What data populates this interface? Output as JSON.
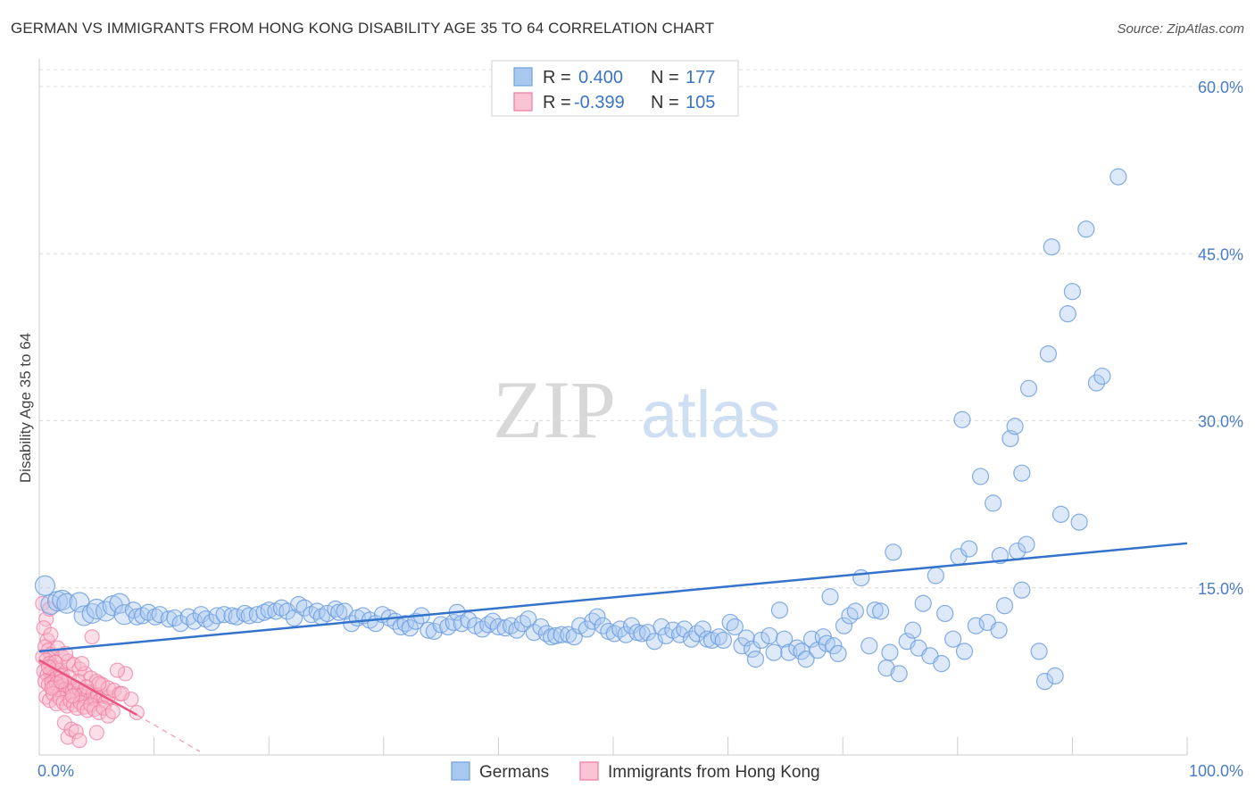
{
  "title": "GERMAN VS IMMIGRANTS FROM HONG KONG DISABILITY AGE 35 TO 64 CORRELATION CHART",
  "source": "Source: ZipAtlas.com",
  "watermark": {
    "zip": "ZIP",
    "atlas": "atlas"
  },
  "colors": {
    "blue": "#6f9fe0",
    "blue_fill": "#a9c8f0",
    "blue_line": "#3373cc",
    "pink": "#f07aa0",
    "pink_fill": "#f8b8cc",
    "pink_line": "#e8557f",
    "grid": "#dcdcdc",
    "tick_text": "#4a7cc7"
  },
  "legend": {
    "rows": [
      {
        "r_label": "R =",
        "r_value": "0.400",
        "n_label": "N =",
        "n_value": "177"
      },
      {
        "r_label": "R =",
        "r_value": "-0.399",
        "n_label": "N =",
        "n_value": "105"
      }
    ]
  },
  "chart_data": {
    "type": "scatter",
    "ylabel": "Disability Age 35 to 64",
    "xlim": [
      0,
      100
    ],
    "ylim": [
      0,
      60
    ],
    "y_ticks": [
      {
        "value": 15,
        "label": "15.0%"
      },
      {
        "value": 30,
        "label": "30.0%"
      },
      {
        "value": 45,
        "label": "45.0%"
      },
      {
        "value": 60,
        "label": "60.0%"
      }
    ],
    "x_tick_labels": [
      {
        "value": 0,
        "label": "0.0%"
      },
      {
        "value": 100,
        "label": "100.0%"
      }
    ],
    "grid": true,
    "series": [
      {
        "name": "Germans",
        "color": "#6f9fe0",
        "trend": {
          "x": [
            0,
            100
          ],
          "y": [
            9.3,
            19.0
          ]
        },
        "points": [
          [
            0.5,
            15.2
          ],
          [
            1.0,
            13.5
          ],
          [
            1.6,
            13.8
          ],
          [
            2.0,
            13.9
          ],
          [
            2.4,
            13.6
          ],
          [
            3.5,
            13.7
          ],
          [
            3.9,
            12.5
          ],
          [
            4.6,
            12.7
          ],
          [
            5.0,
            13.1
          ],
          [
            5.8,
            12.9
          ],
          [
            6.4,
            13.4
          ],
          [
            7.0,
            13.6
          ],
          [
            7.4,
            12.6
          ],
          [
            8.2,
            13.0
          ],
          [
            8.5,
            12.4
          ],
          [
            9.0,
            12.5
          ],
          [
            9.5,
            12.8
          ],
          [
            10.1,
            12.4
          ],
          [
            10.5,
            12.6
          ],
          [
            11.3,
            12.2
          ],
          [
            11.8,
            12.3
          ],
          [
            12.3,
            11.8
          ],
          [
            13.0,
            12.4
          ],
          [
            13.5,
            12.0
          ],
          [
            14.1,
            12.6
          ],
          [
            14.5,
            12.2
          ],
          [
            15.0,
            11.9
          ],
          [
            15.5,
            12.5
          ],
          [
            16.1,
            12.6
          ],
          [
            16.8,
            12.5
          ],
          [
            17.2,
            12.4
          ],
          [
            17.9,
            12.7
          ],
          [
            18.3,
            12.5
          ],
          [
            19.0,
            12.6
          ],
          [
            19.6,
            12.8
          ],
          [
            20.0,
            13.0
          ],
          [
            20.6,
            12.9
          ],
          [
            21.1,
            13.2
          ],
          [
            21.6,
            12.9
          ],
          [
            22.2,
            12.3
          ],
          [
            22.6,
            13.5
          ],
          [
            23.1,
            13.2
          ],
          [
            23.7,
            12.6
          ],
          [
            24.2,
            12.9
          ],
          [
            24.6,
            12.4
          ],
          [
            25.1,
            12.7
          ],
          [
            25.8,
            13.1
          ],
          [
            26.1,
            12.8
          ],
          [
            26.6,
            12.9
          ],
          [
            27.2,
            11.8
          ],
          [
            27.7,
            12.3
          ],
          [
            28.2,
            12.5
          ],
          [
            28.8,
            12.1
          ],
          [
            29.3,
            11.8
          ],
          [
            29.9,
            12.6
          ],
          [
            30.5,
            12.3
          ],
          [
            31.0,
            12.0
          ],
          [
            31.5,
            11.5
          ],
          [
            31.9,
            11.8
          ],
          [
            32.3,
            11.4
          ],
          [
            32.8,
            12.0
          ],
          [
            33.3,
            12.5
          ],
          [
            33.9,
            11.2
          ],
          [
            34.4,
            11.1
          ],
          [
            35.0,
            11.7
          ],
          [
            35.6,
            11.5
          ],
          [
            36.1,
            11.9
          ],
          [
            36.4,
            12.8
          ],
          [
            36.8,
            11.8
          ],
          [
            37.4,
            12.1
          ],
          [
            38.0,
            11.6
          ],
          [
            38.6,
            11.3
          ],
          [
            39.1,
            11.7
          ],
          [
            39.5,
            12.0
          ],
          [
            40.0,
            11.5
          ],
          [
            40.6,
            11.4
          ],
          [
            41.1,
            11.6
          ],
          [
            41.6,
            11.2
          ],
          [
            42.1,
            11.8
          ],
          [
            42.6,
            12.2
          ],
          [
            43.1,
            11.0
          ],
          [
            43.7,
            11.5
          ],
          [
            44.2,
            10.9
          ],
          [
            44.6,
            10.6
          ],
          [
            45.0,
            10.7
          ],
          [
            45.5,
            10.8
          ],
          [
            46.1,
            10.8
          ],
          [
            46.6,
            10.6
          ],
          [
            47.1,
            11.6
          ],
          [
            47.7,
            11.3
          ],
          [
            48.2,
            12.0
          ],
          [
            48.6,
            12.4
          ],
          [
            49.1,
            11.6
          ],
          [
            49.6,
            11.1
          ],
          [
            50.1,
            10.9
          ],
          [
            50.6,
            11.3
          ],
          [
            51.1,
            10.8
          ],
          [
            51.6,
            11.6
          ],
          [
            52.1,
            11.0
          ],
          [
            52.5,
            10.9
          ],
          [
            53.0,
            11.0
          ],
          [
            53.6,
            10.2
          ],
          [
            54.2,
            11.5
          ],
          [
            54.6,
            10.7
          ],
          [
            55.2,
            11.2
          ],
          [
            55.8,
            10.8
          ],
          [
            56.2,
            11.3
          ],
          [
            56.8,
            10.4
          ],
          [
            57.3,
            10.9
          ],
          [
            57.8,
            11.3
          ],
          [
            58.2,
            10.4
          ],
          [
            58.6,
            10.3
          ],
          [
            59.2,
            10.6
          ],
          [
            59.6,
            10.3
          ],
          [
            60.2,
            11.9
          ],
          [
            60.6,
            11.5
          ],
          [
            61.2,
            9.8
          ],
          [
            61.6,
            10.5
          ],
          [
            62.1,
            9.5
          ],
          [
            62.4,
            8.6
          ],
          [
            62.9,
            10.3
          ],
          [
            63.6,
            10.7
          ],
          [
            64.0,
            9.2
          ],
          [
            64.5,
            13.0
          ],
          [
            64.9,
            10.4
          ],
          [
            65.3,
            9.2
          ],
          [
            66.0,
            9.6
          ],
          [
            66.4,
            9.3
          ],
          [
            66.8,
            8.6
          ],
          [
            67.3,
            10.4
          ],
          [
            67.8,
            9.4
          ],
          [
            68.3,
            10.6
          ],
          [
            68.6,
            10.0
          ],
          [
            69.2,
            9.8
          ],
          [
            69.6,
            9.1
          ],
          [
            70.1,
            11.6
          ],
          [
            70.6,
            12.5
          ],
          [
            71.1,
            12.9
          ],
          [
            71.6,
            15.9
          ],
          [
            72.3,
            9.8
          ],
          [
            72.8,
            13.0
          ],
          [
            73.3,
            12.9
          ],
          [
            73.8,
            7.8
          ],
          [
            74.1,
            9.2
          ],
          [
            74.4,
            18.2
          ],
          [
            74.9,
            7.3
          ],
          [
            75.6,
            10.2
          ],
          [
            76.1,
            11.2
          ],
          [
            76.6,
            9.6
          ],
          [
            77.0,
            13.6
          ],
          [
            77.6,
            8.9
          ],
          [
            78.1,
            16.1
          ],
          [
            78.6,
            8.2
          ],
          [
            78.9,
            12.7
          ],
          [
            79.6,
            10.4
          ],
          [
            80.1,
            17.8
          ],
          [
            80.6,
            9.3
          ],
          [
            81.0,
            18.5
          ],
          [
            81.6,
            11.6
          ],
          [
            82.0,
            25.0
          ],
          [
            82.6,
            11.9
          ],
          [
            83.1,
            22.6
          ],
          [
            83.6,
            11.2
          ],
          [
            84.1,
            13.4
          ],
          [
            84.6,
            28.4
          ],
          [
            85.0,
            29.5
          ],
          [
            85.6,
            14.8
          ],
          [
            85.2,
            18.3
          ],
          [
            86.0,
            18.9
          ],
          [
            85.6,
            25.3
          ],
          [
            87.1,
            9.3
          ],
          [
            87.6,
            6.6
          ],
          [
            87.9,
            36.0
          ],
          [
            88.2,
            45.6
          ],
          [
            88.5,
            7.1
          ],
          [
            89.0,
            21.6
          ],
          [
            89.6,
            39.6
          ],
          [
            90.0,
            41.6
          ],
          [
            90.6,
            20.9
          ],
          [
            91.2,
            47.2
          ],
          [
            92.1,
            33.4
          ],
          [
            94.0,
            51.9
          ],
          [
            86.2,
            32.9
          ],
          [
            80.4,
            30.1
          ],
          [
            83.7,
            17.9
          ],
          [
            92.6,
            34.0
          ],
          [
            68.9,
            14.2
          ]
        ]
      },
      {
        "name": "Immigrants from Hong Kong",
        "color": "#f07aa0",
        "trend": {
          "x": [
            0,
            8.5
          ],
          "y": [
            8.5,
            3.6
          ],
          "dashed_x": [
            8.5,
            14
          ],
          "dashed_y": [
            3.6,
            0.3
          ]
        },
        "points": [
          [
            0.3,
            13.6
          ],
          [
            0.6,
            12.2
          ],
          [
            0.9,
            13.1
          ],
          [
            0.4,
            11.4
          ],
          [
            0.7,
            10.3
          ],
          [
            0.5,
            9.7
          ],
          [
            0.8,
            9.4
          ],
          [
            1.0,
            9.0
          ],
          [
            0.3,
            8.8
          ],
          [
            0.6,
            8.5
          ],
          [
            0.9,
            8.2
          ],
          [
            1.1,
            7.9
          ],
          [
            1.3,
            7.6
          ],
          [
            1.5,
            7.8
          ],
          [
            0.4,
            7.5
          ],
          [
            0.7,
            7.2
          ],
          [
            1.0,
            7.4
          ],
          [
            1.2,
            7.0
          ],
          [
            1.4,
            6.8
          ],
          [
            1.6,
            7.3
          ],
          [
            1.8,
            7.6
          ],
          [
            2.0,
            7.1
          ],
          [
            2.2,
            6.7
          ],
          [
            0.5,
            6.6
          ],
          [
            0.8,
            6.3
          ],
          [
            1.1,
            6.5
          ],
          [
            1.3,
            6.1
          ],
          [
            1.5,
            6.4
          ],
          [
            1.7,
            6.0
          ],
          [
            1.9,
            5.8
          ],
          [
            2.1,
            6.2
          ],
          [
            2.3,
            5.9
          ],
          [
            2.5,
            5.6
          ],
          [
            2.7,
            6.0
          ],
          [
            2.9,
            5.7
          ],
          [
            3.1,
            6.1
          ],
          [
            3.3,
            5.5
          ],
          [
            3.5,
            5.9
          ],
          [
            3.7,
            5.3
          ],
          [
            3.9,
            5.7
          ],
          [
            4.1,
            5.2
          ],
          [
            4.3,
            5.6
          ],
          [
            4.5,
            5.1
          ],
          [
            4.7,
            5.5
          ],
          [
            4.9,
            5.0
          ],
          [
            5.1,
            5.4
          ],
          [
            5.3,
            4.9
          ],
          [
            5.6,
            5.3
          ],
          [
            5.8,
            4.8
          ],
          [
            6.0,
            5.2
          ],
          [
            0.6,
            5.2
          ],
          [
            0.9,
            4.9
          ],
          [
            1.2,
            5.5
          ],
          [
            1.5,
            4.6
          ],
          [
            1.8,
            5.1
          ],
          [
            2.1,
            4.7
          ],
          [
            2.4,
            4.4
          ],
          [
            2.7,
            4.9
          ],
          [
            3.0,
            4.5
          ],
          [
            3.3,
            4.2
          ],
          [
            3.6,
            4.7
          ],
          [
            3.9,
            4.3
          ],
          [
            4.2,
            4.0
          ],
          [
            4.5,
            4.5
          ],
          [
            4.8,
            4.1
          ],
          [
            5.2,
            3.8
          ],
          [
            5.6,
            4.2
          ],
          [
            6.0,
            3.5
          ],
          [
            6.4,
            3.9
          ],
          [
            1.0,
            10.8
          ],
          [
            1.6,
            9.6
          ],
          [
            2.0,
            8.8
          ],
          [
            2.5,
            8.4
          ],
          [
            3.0,
            8.1
          ],
          [
            3.5,
            7.7
          ],
          [
            4.0,
            7.3
          ],
          [
            4.5,
            6.9
          ],
          [
            5.0,
            6.6
          ],
          [
            5.5,
            6.3
          ],
          [
            6.0,
            6.0
          ],
          [
            6.5,
            5.8
          ],
          [
            7.0,
            5.5
          ],
          [
            7.5,
            7.3
          ],
          [
            8.0,
            5.0
          ],
          [
            8.5,
            3.8
          ],
          [
            2.2,
            2.9
          ],
          [
            2.5,
            1.6
          ],
          [
            2.8,
            2.3
          ],
          [
            3.2,
            2.1
          ],
          [
            3.5,
            1.3
          ],
          [
            4.6,
            10.6
          ],
          [
            5.2,
            6.4
          ],
          [
            3.7,
            8.2
          ],
          [
            2.3,
            9.1
          ],
          [
            1.4,
            8.3
          ],
          [
            6.8,
            7.6
          ],
          [
            1.1,
            6.0
          ],
          [
            2.6,
            7.0
          ],
          [
            3.4,
            6.6
          ],
          [
            4.1,
            6.1
          ],
          [
            0.8,
            7.9
          ],
          [
            1.9,
            6.6
          ],
          [
            2.9,
            5.3
          ],
          [
            5.0,
            2.0
          ],
          [
            7.2,
            5.5
          ]
        ]
      }
    ]
  },
  "bottom_legend": [
    {
      "label": "Germans"
    },
    {
      "label": "Immigrants from Hong Kong"
    }
  ]
}
